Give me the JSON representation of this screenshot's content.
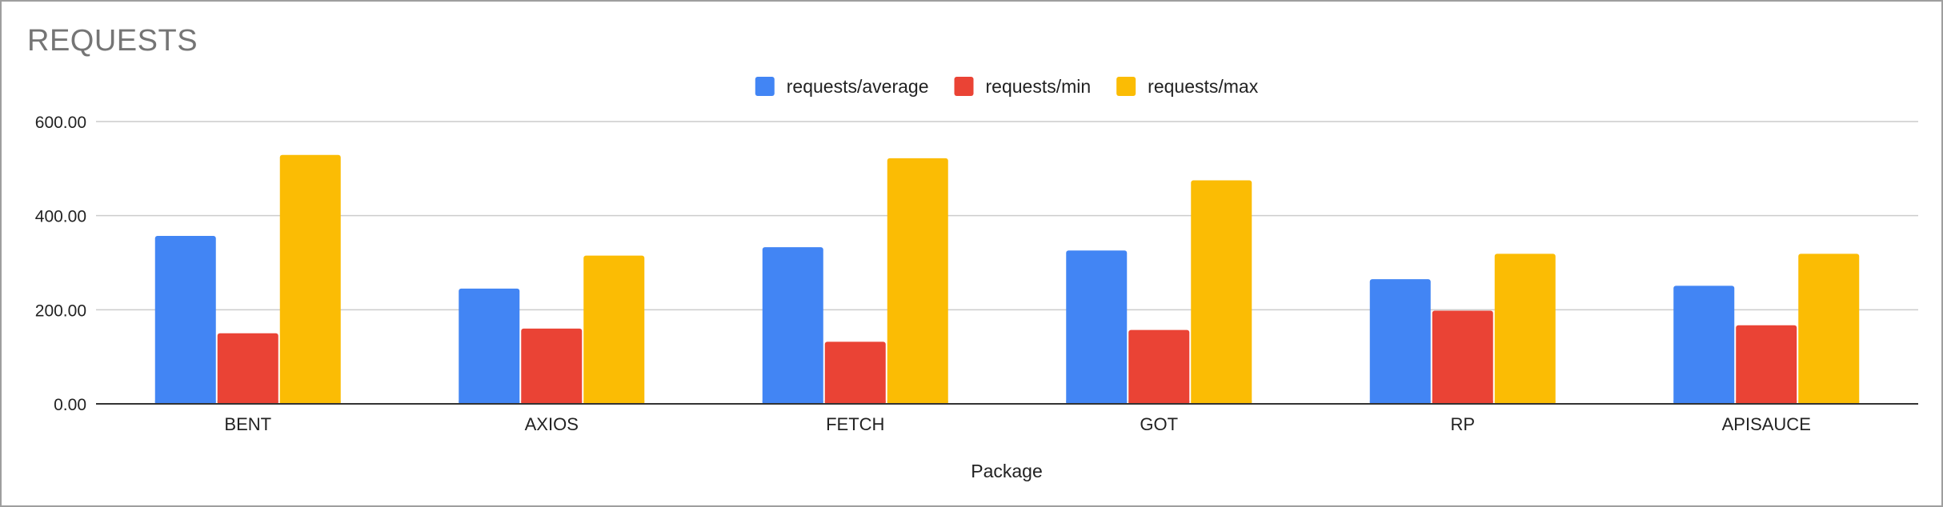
{
  "chart_data": {
    "type": "bar",
    "title": "REQUESTS",
    "xlabel": "Package",
    "ylabel": "",
    "categories": [
      "BENT",
      "AXIOS",
      "FETCH",
      "GOT",
      "RP",
      "APISAUCE"
    ],
    "series": [
      {
        "name": "requests/average",
        "color": "#4285F4",
        "values": [
          357,
          245,
          333,
          326,
          265,
          251
        ]
      },
      {
        "name": "requests/min",
        "color": "#EA4335",
        "values": [
          150,
          160,
          132,
          157,
          198,
          167
        ]
      },
      {
        "name": "requests/max",
        "color": "#FBBC04",
        "values": [
          529,
          315,
          522,
          475,
          319,
          319
        ]
      }
    ],
    "ylim": [
      0,
      600
    ],
    "yticks": [
      0,
      200,
      400,
      600
    ],
    "ytick_labels": [
      "0.00",
      "200.00",
      "400.00",
      "600.00"
    ],
    "grid": true,
    "legend_position": "top-center"
  }
}
